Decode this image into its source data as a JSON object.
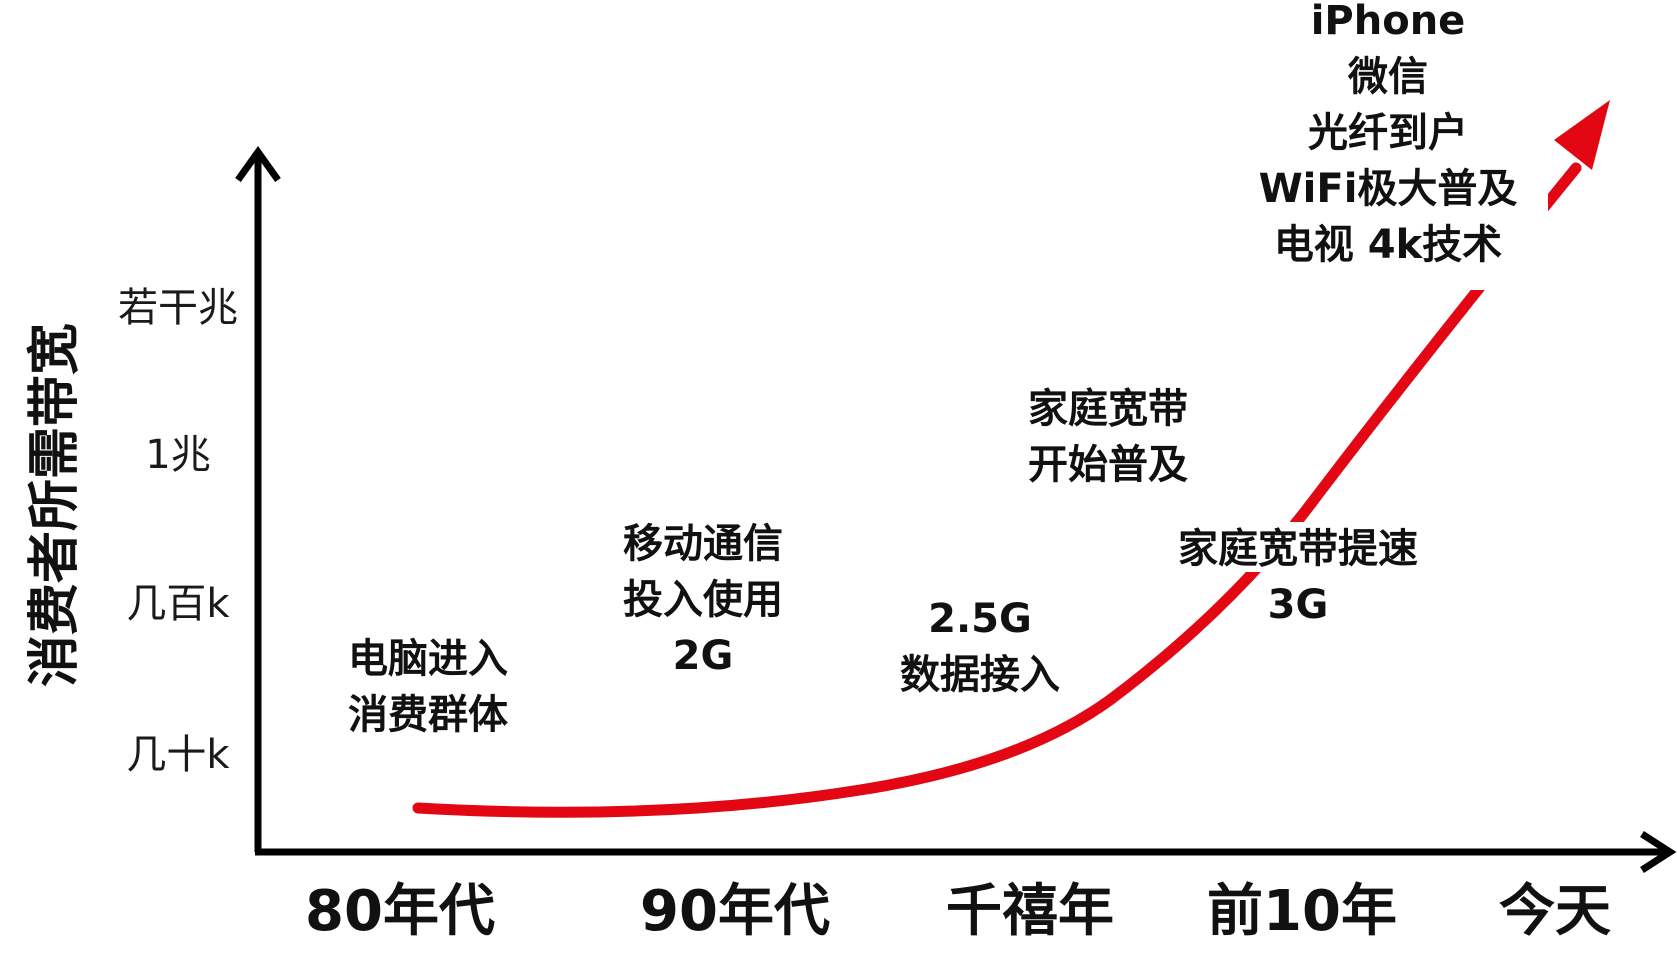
{
  "chart_data": {
    "type": "line",
    "title": "",
    "xlabel": "",
    "ylabel": "消费者所需带宽",
    "categories": [
      "80年代",
      "90年代",
      "千禧年",
      "前10年",
      "今天"
    ],
    "yticks": [
      "几十k",
      "几百k",
      "1兆",
      "若干兆"
    ],
    "series": [
      {
        "color": "#e30613",
        "curve": "exponential",
        "x": [
          "80年代",
          "90年代",
          "千禧年",
          "前10年",
          "今天"
        ],
        "y": [
          0.3,
          0.35,
          0.8,
          2.0,
          6.5
        ]
      }
    ],
    "annotations": [
      {
        "lines": [
          "电脑进入",
          "消费群体"
        ]
      },
      {
        "lines": [
          "移动通信",
          "投入使用",
          "2G"
        ]
      },
      {
        "lines": [
          "2.5G",
          "数据接入"
        ]
      },
      {
        "lines": [
          "家庭宽带",
          "开始普及"
        ]
      },
      {
        "lines": [
          "家庭宽带提速",
          "3G"
        ]
      },
      {
        "lines": [
          "iPhone",
          "微信",
          "光纤到户",
          "WiFi极大普及",
          "电视 4k技术"
        ]
      }
    ],
    "grid": false,
    "legend": "none"
  }
}
